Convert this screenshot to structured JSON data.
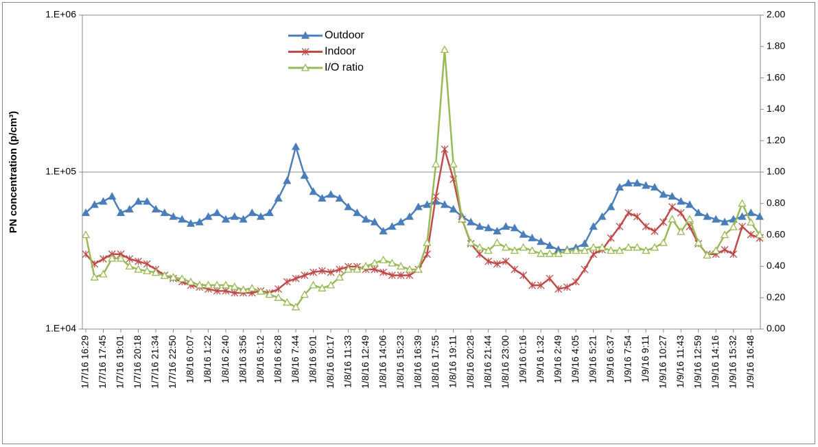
{
  "chart_data": {
    "type": "line",
    "y_label": "PN concentration (p/cm³)",
    "categories": [
      "1/7/16 16:29",
      null,
      "1/7/16 17:45",
      null,
      "1/7/16 19:01",
      null,
      "1/7/16 20:18",
      null,
      "1/7/16 21:34",
      null,
      "1/7/16 22:50",
      null,
      "1/8/16 0:07",
      null,
      "1/8/16 1:22",
      null,
      "1/8/16 2:40",
      null,
      "1/8/16 3:56",
      null,
      "1/8/16 5:12",
      null,
      "1/8/16 6:28",
      null,
      "1/8/16 7:44",
      null,
      "1/8/16 9:01",
      null,
      "1/8/16 10:17",
      null,
      "1/8/16 11:33",
      null,
      "1/8/16 12:49",
      null,
      "1/8/16 14:06",
      null,
      "1/8/16 15:23",
      null,
      "1/8/16 16:39",
      null,
      "1/8/16 17:55",
      null,
      "1/8/16 19:11",
      null,
      "1/8/16 20:28",
      null,
      "1/8/16 21:44",
      null,
      "1/8/16 23:00",
      null,
      "1/9/16 0:16",
      null,
      "1/9/16 1:32",
      null,
      "1/9/16 2:49",
      null,
      "1/9/16 4:05",
      null,
      "1/9/16 5:21",
      null,
      "1/9/16 6:37",
      null,
      "1/9/16 7:54",
      null,
      "1/9/16 9:11",
      null,
      "1/9/16 10:27",
      null,
      "1/9/16 11:43",
      null,
      "1/9/16 12:59",
      null,
      "1/9/16 14:16",
      null,
      "1/9/16 15:32",
      null,
      "1/9/16 16:48",
      null
    ],
    "series": [
      {
        "name": "Outdoor",
        "color": "#4a7ebb",
        "marker": "triangle",
        "axis": "y",
        "values": [
          55000,
          62000,
          65000,
          70000,
          55000,
          58000,
          65000,
          65000,
          58000,
          55000,
          52000,
          50000,
          47000,
          48000,
          52000,
          55000,
          50000,
          52000,
          50000,
          55000,
          52000,
          55000,
          68000,
          88000,
          145000,
          95000,
          75000,
          68000,
          72000,
          68000,
          60000,
          55000,
          50000,
          48000,
          42000,
          45000,
          48000,
          52000,
          60000,
          62000,
          65000,
          62000,
          58000,
          52000,
          48000,
          45000,
          44000,
          42000,
          45000,
          44000,
          40000,
          38000,
          36000,
          34000,
          32000,
          32000,
          33000,
          35000,
          45000,
          52000,
          60000,
          80000,
          85000,
          85000,
          82000,
          80000,
          72000,
          70000,
          65000,
          62000,
          55000,
          52000,
          50000,
          48000,
          50000,
          52000,
          55000,
          52000
        ]
      },
      {
        "name": "Indoor",
        "color": "#be4b48",
        "marker": "asterisk",
        "axis": "y",
        "values": [
          30000,
          26000,
          28000,
          30000,
          30000,
          28000,
          27000,
          26000,
          24000,
          22000,
          21000,
          20000,
          19000,
          18500,
          18000,
          17500,
          17500,
          17000,
          17000,
          17000,
          17500,
          17000,
          18000,
          20000,
          21000,
          22000,
          23000,
          23500,
          23000,
          24000,
          25000,
          25000,
          24000,
          24000,
          23000,
          22000,
          22000,
          22000,
          24000,
          30000,
          70000,
          140000,
          90000,
          50000,
          35000,
          30000,
          27000,
          26000,
          27000,
          24000,
          22000,
          19000,
          19000,
          21000,
          18000,
          18500,
          20000,
          24000,
          30000,
          32000,
          38000,
          45000,
          55000,
          52000,
          45000,
          42000,
          48000,
          60000,
          55000,
          45000,
          35000,
          30000,
          30000,
          32000,
          30000,
          45000,
          40000,
          38000
        ]
      },
      {
        "name": "I/O ratio",
        "color": "#98b954",
        "marker": "hollow-triangle",
        "axis": "y2",
        "values": [
          0.6,
          0.33,
          0.35,
          0.45,
          0.45,
          0.4,
          0.38,
          0.37,
          0.36,
          0.34,
          0.33,
          0.32,
          0.3,
          0.28,
          0.28,
          0.28,
          0.28,
          0.27,
          0.25,
          0.26,
          0.24,
          0.22,
          0.2,
          0.17,
          0.14,
          0.22,
          0.28,
          0.26,
          0.28,
          0.33,
          0.38,
          0.38,
          0.4,
          0.42,
          0.44,
          0.42,
          0.4,
          0.38,
          0.38,
          0.55,
          1.05,
          1.78,
          1.05,
          0.7,
          0.55,
          0.52,
          0.5,
          0.55,
          0.52,
          0.5,
          0.52,
          0.5,
          0.48,
          0.48,
          0.48,
          0.5,
          0.5,
          0.5,
          0.52,
          0.52,
          0.5,
          0.5,
          0.52,
          0.52,
          0.5,
          0.52,
          0.55,
          0.7,
          0.62,
          0.7,
          0.55,
          0.47,
          0.5,
          0.6,
          0.65,
          0.8,
          0.68,
          0.6
        ]
      }
    ],
    "log_y": true,
    "ylim": [
      10000,
      1000000
    ],
    "yticks": [
      {
        "value": 10000,
        "label": "1.E+04"
      },
      {
        "value": 100000,
        "label": "1.E+05"
      },
      {
        "value": 1000000,
        "label": "1.E+06"
      }
    ],
    "y2lim": [
      0,
      2
    ],
    "y2ticks": [
      {
        "value": 0,
        "label": "0.00"
      },
      {
        "value": 0.2,
        "label": "0.20"
      },
      {
        "value": 0.4,
        "label": "0.40"
      },
      {
        "value": 0.6,
        "label": "0.60"
      },
      {
        "value": 0.8,
        "label": "0.80"
      },
      {
        "value": 1,
        "label": "1.00"
      },
      {
        "value": 1.2,
        "label": "1.20"
      },
      {
        "value": 1.4,
        "label": "1.40"
      },
      {
        "value": 1.6,
        "label": "1.60"
      },
      {
        "value": 1.8,
        "label": "1.80"
      },
      {
        "value": 2,
        "label": "2.00"
      }
    ],
    "grid": true,
    "legend": "top"
  }
}
